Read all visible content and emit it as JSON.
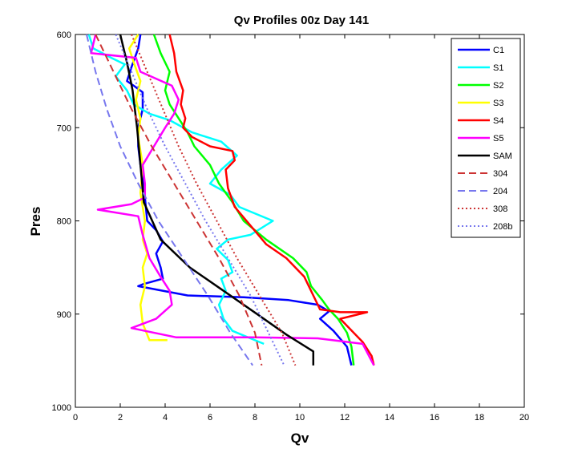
{
  "chart_data": {
    "type": "line",
    "title": "Qv Profiles 00z Day 141",
    "xlabel": "Qv",
    "ylabel": "Pres",
    "xlim": [
      0,
      20
    ],
    "ylim": [
      600,
      1000
    ],
    "y_reversed": true,
    "xticks": [
      0,
      2,
      4,
      6,
      8,
      10,
      12,
      14,
      16,
      18,
      20
    ],
    "yticks": [
      600,
      700,
      800,
      900,
      1000
    ],
    "grid": false,
    "legend_position": "top-right",
    "series": [
      {
        "name": "C1",
        "color": "#0000ff",
        "dash": "solid",
        "points": [
          [
            2.9,
            600
          ],
          [
            2.8,
            615
          ],
          [
            2.5,
            635
          ],
          [
            2.3,
            650
          ],
          [
            2.6,
            655
          ],
          [
            3.0,
            662
          ],
          [
            3.0,
            680
          ],
          [
            2.8,
            700
          ],
          [
            2.8,
            720
          ],
          [
            2.9,
            740
          ],
          [
            3.0,
            755
          ],
          [
            3.1,
            775
          ],
          [
            3.2,
            800
          ],
          [
            3.6,
            810
          ],
          [
            3.9,
            822
          ],
          [
            3.6,
            835
          ],
          [
            3.8,
            850
          ],
          [
            3.9,
            862
          ],
          [
            3.0,
            868
          ],
          [
            2.8,
            870
          ],
          [
            5.0,
            880
          ],
          [
            7.5,
            882
          ],
          [
            9.5,
            885
          ],
          [
            10.8,
            890
          ],
          [
            11.3,
            897
          ],
          [
            10.9,
            905
          ],
          [
            11.5,
            918
          ],
          [
            12.1,
            935
          ],
          [
            12.3,
            955
          ]
        ]
      },
      {
        "name": "S1",
        "color": "#00ffff",
        "dash": "solid",
        "points": [
          [
            0.6,
            600
          ],
          [
            0.8,
            615
          ],
          [
            1.6,
            625
          ],
          [
            2.2,
            632
          ],
          [
            1.8,
            645
          ],
          [
            2.3,
            660
          ],
          [
            2.6,
            675
          ],
          [
            3.3,
            685
          ],
          [
            4.2,
            692
          ],
          [
            5.2,
            705
          ],
          [
            6.5,
            715
          ],
          [
            7.2,
            730
          ],
          [
            6.5,
            745
          ],
          [
            6.0,
            760
          ],
          [
            6.9,
            772
          ],
          [
            7.3,
            785
          ],
          [
            8.8,
            800
          ],
          [
            7.8,
            815
          ],
          [
            6.8,
            820
          ],
          [
            6.3,
            830
          ],
          [
            6.8,
            842
          ],
          [
            7.0,
            855
          ],
          [
            6.5,
            862
          ],
          [
            6.7,
            875
          ],
          [
            6.4,
            890
          ],
          [
            6.6,
            905
          ],
          [
            7.0,
            918
          ],
          [
            7.8,
            926
          ],
          [
            8.4,
            932
          ]
        ]
      },
      {
        "name": "S2",
        "color": "#00ff00",
        "dash": "solid",
        "points": [
          [
            3.5,
            600
          ],
          [
            3.8,
            620
          ],
          [
            4.2,
            640
          ],
          [
            4.0,
            660
          ],
          [
            4.2,
            675
          ],
          [
            4.6,
            690
          ],
          [
            5.0,
            705
          ],
          [
            5.3,
            720
          ],
          [
            6.0,
            740
          ],
          [
            6.4,
            760
          ],
          [
            7.0,
            780
          ],
          [
            7.5,
            800
          ],
          [
            8.5,
            820
          ],
          [
            9.7,
            840
          ],
          [
            10.3,
            855
          ],
          [
            10.5,
            870
          ],
          [
            11.0,
            885
          ],
          [
            11.3,
            895
          ],
          [
            11.7,
            905
          ],
          [
            12.1,
            920
          ],
          [
            12.3,
            935
          ],
          [
            12.4,
            955
          ]
        ]
      },
      {
        "name": "S3",
        "color": "#ffff00",
        "dash": "solid",
        "points": [
          [
            2.8,
            600
          ],
          [
            2.4,
            615
          ],
          [
            2.6,
            630
          ],
          [
            2.9,
            650
          ],
          [
            2.7,
            670
          ],
          [
            2.9,
            690
          ],
          [
            2.8,
            710
          ],
          [
            3.0,
            740
          ],
          [
            2.9,
            770
          ],
          [
            3.1,
            800
          ],
          [
            3.0,
            820
          ],
          [
            3.2,
            835
          ],
          [
            3.0,
            850
          ],
          [
            3.1,
            870
          ],
          [
            2.9,
            890
          ],
          [
            3.0,
            910
          ],
          [
            3.3,
            928
          ],
          [
            4.1,
            928
          ]
        ]
      },
      {
        "name": "S4",
        "color": "#ff0000",
        "dash": "solid",
        "points": [
          [
            4.2,
            600
          ],
          [
            4.4,
            620
          ],
          [
            4.5,
            640
          ],
          [
            4.8,
            660
          ],
          [
            4.7,
            675
          ],
          [
            4.9,
            690
          ],
          [
            4.8,
            700
          ],
          [
            5.2,
            710
          ],
          [
            6.0,
            720
          ],
          [
            7.0,
            725
          ],
          [
            7.1,
            735
          ],
          [
            6.7,
            745
          ],
          [
            6.8,
            765
          ],
          [
            7.1,
            785
          ],
          [
            7.8,
            805
          ],
          [
            8.5,
            825
          ],
          [
            9.4,
            840
          ],
          [
            10.2,
            860
          ],
          [
            10.6,
            880
          ],
          [
            10.9,
            895
          ],
          [
            11.8,
            898
          ],
          [
            13.0,
            898
          ],
          [
            11.8,
            905
          ],
          [
            12.2,
            915
          ],
          [
            12.8,
            930
          ],
          [
            13.2,
            945
          ],
          [
            13.3,
            955
          ]
        ]
      },
      {
        "name": "S5",
        "color": "#ff00ff",
        "dash": "solid",
        "points": [
          [
            0.9,
            600
          ],
          [
            0.7,
            620
          ],
          [
            2.7,
            625
          ],
          [
            2.9,
            640
          ],
          [
            4.3,
            655
          ],
          [
            4.6,
            670
          ],
          [
            4.4,
            685
          ],
          [
            4.0,
            700
          ],
          [
            3.5,
            720
          ],
          [
            3.0,
            740
          ],
          [
            3.1,
            760
          ],
          [
            3.1,
            775
          ],
          [
            2.5,
            782
          ],
          [
            1.0,
            788
          ],
          [
            2.8,
            795
          ],
          [
            3.0,
            815
          ],
          [
            3.3,
            840
          ],
          [
            3.8,
            860
          ],
          [
            4.2,
            875
          ],
          [
            4.3,
            890
          ],
          [
            3.6,
            905
          ],
          [
            2.5,
            915
          ],
          [
            4.5,
            925
          ],
          [
            8.0,
            925
          ],
          [
            10.8,
            926
          ],
          [
            12.8,
            932
          ],
          [
            13.3,
            955
          ]
        ]
      },
      {
        "name": "SAM",
        "color": "#000000",
        "dash": "solid",
        "points": [
          [
            2.0,
            600
          ],
          [
            2.3,
            630
          ],
          [
            2.55,
            660
          ],
          [
            2.75,
            700
          ],
          [
            2.9,
            740
          ],
          [
            3.05,
            780
          ],
          [
            3.8,
            820
          ],
          [
            5.1,
            850
          ],
          [
            6.6,
            875
          ],
          [
            8.1,
            900
          ],
          [
            9.4,
            922
          ],
          [
            10.6,
            940
          ],
          [
            10.6,
            955
          ]
        ]
      },
      {
        "name": "304",
        "color": "#cc3333",
        "dash": "dashed",
        "points": [
          [
            0.9,
            600
          ],
          [
            1.7,
            640
          ],
          [
            2.5,
            680
          ],
          [
            3.4,
            720
          ],
          [
            4.4,
            760
          ],
          [
            5.4,
            800
          ],
          [
            6.4,
            840
          ],
          [
            7.3,
            880
          ],
          [
            8.0,
            920
          ],
          [
            8.3,
            955
          ]
        ]
      },
      {
        "name": "204",
        "color": "#7777ee",
        "dash": "dashed",
        "points": [
          [
            0.5,
            600
          ],
          [
            0.9,
            640
          ],
          [
            1.4,
            680
          ],
          [
            2.0,
            720
          ],
          [
            2.8,
            760
          ],
          [
            3.7,
            800
          ],
          [
            4.8,
            840
          ],
          [
            5.9,
            880
          ],
          [
            6.9,
            920
          ],
          [
            7.9,
            955
          ]
        ]
      },
      {
        "name": "308",
        "color": "#cc3333",
        "dash": "dotted",
        "points": [
          [
            2.5,
            600
          ],
          [
            3.2,
            640
          ],
          [
            3.9,
            680
          ],
          [
            4.6,
            720
          ],
          [
            5.4,
            760
          ],
          [
            6.3,
            800
          ],
          [
            7.2,
            840
          ],
          [
            8.2,
            880
          ],
          [
            9.2,
            920
          ],
          [
            9.8,
            955
          ]
        ]
      },
      {
        "name": "208b",
        "color": "#7777ee",
        "dash": "dotted",
        "points": [
          [
            1.8,
            600
          ],
          [
            2.5,
            640
          ],
          [
            3.2,
            680
          ],
          [
            4.0,
            720
          ],
          [
            4.9,
            760
          ],
          [
            5.8,
            800
          ],
          [
            6.8,
            840
          ],
          [
            7.8,
            880
          ],
          [
            8.6,
            920
          ],
          [
            9.3,
            955
          ]
        ]
      }
    ]
  }
}
